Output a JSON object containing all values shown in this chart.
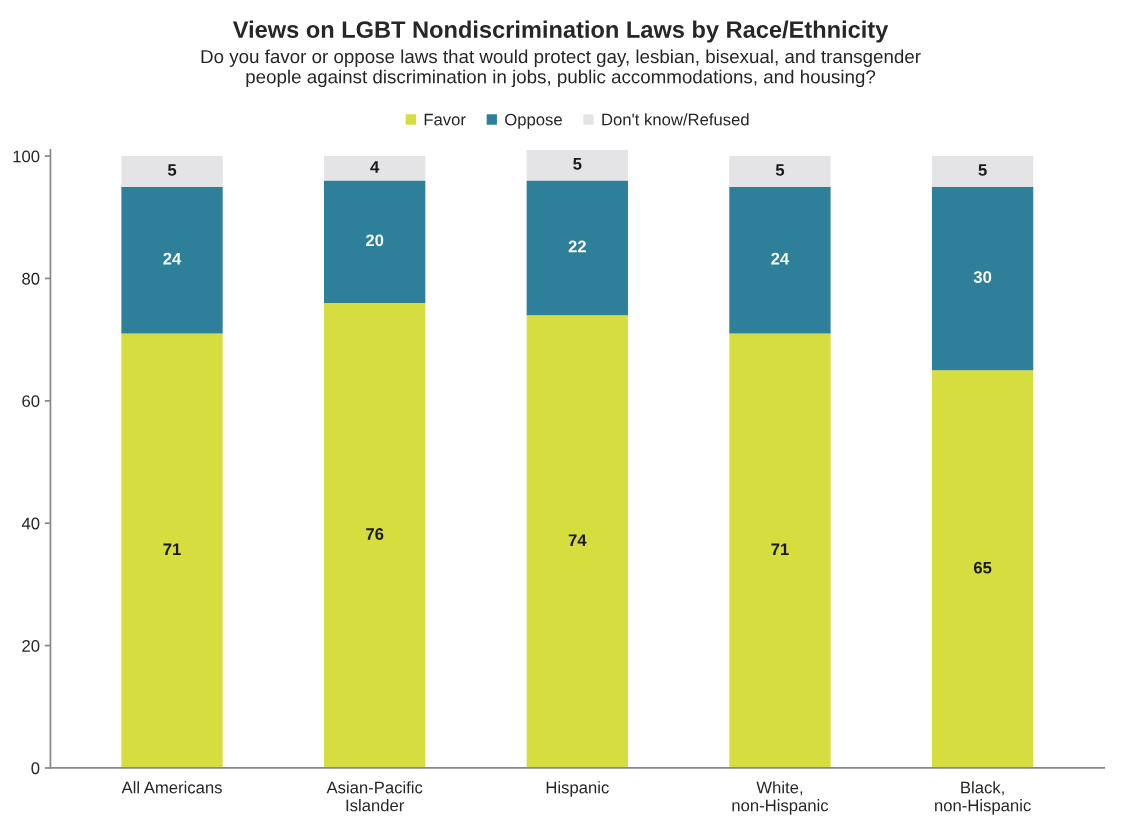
{
  "chart_data": {
    "type": "bar",
    "title": "Views on LGBT Nondiscrimination Laws by Race/Ethnicity",
    "subtitle": "Do you favor or oppose laws that would protect gay, lesbian, bisexual, and transgender\npeople against discrimination in jobs, public accommodations, and housing?",
    "categories": [
      "All Americans",
      "Asian-Pacific\nIslander",
      "Hispanic",
      "White,\nnon-Hispanic",
      "Black,\nnon-Hispanic"
    ],
    "series": [
      {
        "name": "Favor",
        "color": "#d6de3f",
        "values": [
          71,
          76,
          74,
          71,
          65
        ]
      },
      {
        "name": "Oppose",
        "color": "#2e7f9a",
        "values": [
          24,
          20,
          22,
          24,
          30
        ]
      },
      {
        "name": "Don't know/Refused",
        "color": "#e4e4e6",
        "values": [
          5,
          4,
          5,
          5,
          5
        ]
      }
    ],
    "stacked": true,
    "data_labels": true,
    "ylim": [
      0,
      101
    ],
    "yticks": [
      0,
      20,
      40,
      60,
      80,
      100
    ],
    "grid": false,
    "legend": "top"
  }
}
